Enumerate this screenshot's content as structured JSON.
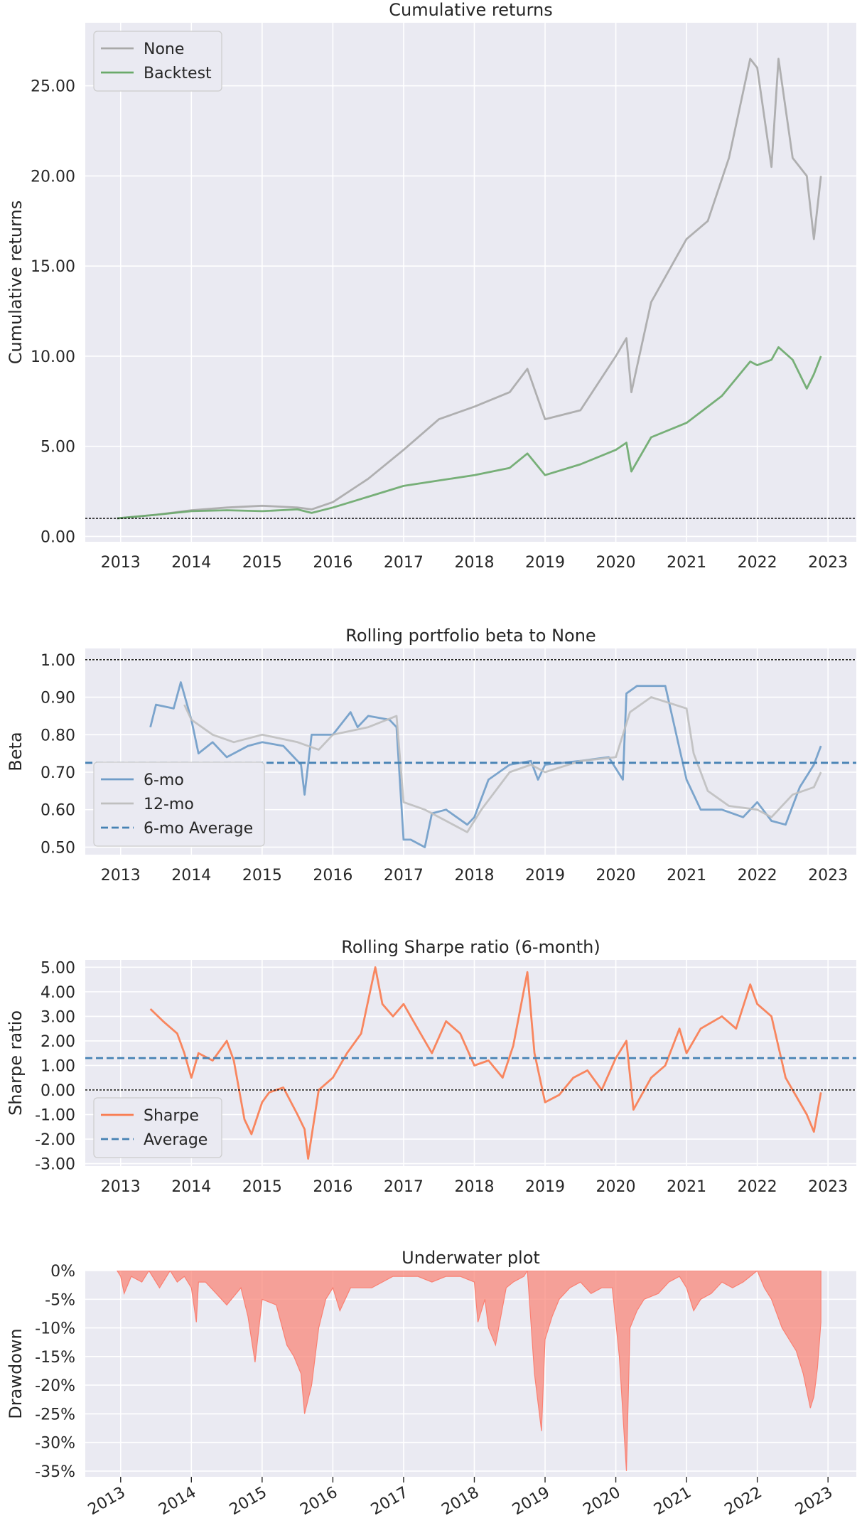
{
  "chart_data": [
    {
      "type": "line",
      "title": "Cumulative returns",
      "xlabel": "",
      "ylabel": "Cumulative returns",
      "xlim": [
        2012.5,
        2023.4
      ],
      "ylim": [
        -0.3,
        28.5
      ],
      "x_ticks": [
        2013,
        2014,
        2015,
        2016,
        2017,
        2018,
        2019,
        2020,
        2021,
        2022,
        2023
      ],
      "x_tick_labels": [
        "2013",
        "2014",
        "2015",
        "2016",
        "2017",
        "2018",
        "2019",
        "2020",
        "2021",
        "2022",
        "2023"
      ],
      "y_ticks": [
        0,
        5,
        10,
        15,
        20,
        25
      ],
      "y_tick_labels": [
        "0.00",
        "5.00",
        "10.00",
        "15.00",
        "20.00",
        "25.00"
      ],
      "hlines": [
        {
          "y": 1.0,
          "style": "dotted",
          "color": "#000000"
        }
      ],
      "legend": {
        "position": "top-left",
        "entries": [
          "None",
          "Backtest"
        ]
      },
      "grid": true,
      "series": [
        {
          "name": "None",
          "color": "#a9a9a9",
          "x": [
            2012.95,
            2013.5,
            2014.0,
            2014.5,
            2015.0,
            2015.5,
            2015.7,
            2016.0,
            2016.5,
            2017.0,
            2017.5,
            2018.0,
            2018.5,
            2018.75,
            2019.0,
            2019.5,
            2020.0,
            2020.15,
            2020.22,
            2020.5,
            2021.0,
            2021.3,
            2021.6,
            2021.9,
            2022.0,
            2022.2,
            2022.3,
            2022.5,
            2022.7,
            2022.8,
            2022.9
          ],
          "y": [
            1.0,
            1.2,
            1.45,
            1.6,
            1.7,
            1.6,
            1.5,
            1.9,
            3.2,
            4.8,
            6.5,
            7.2,
            8.0,
            9.3,
            6.5,
            7.0,
            10.0,
            11.0,
            8.0,
            13.0,
            16.5,
            17.5,
            21.0,
            26.5,
            26.0,
            20.5,
            26.5,
            21.0,
            20.0,
            16.5,
            20.0
          ]
        },
        {
          "name": "Backtest",
          "color": "#6aa96a",
          "x": [
            2012.95,
            2013.5,
            2014.0,
            2014.5,
            2015.0,
            2015.5,
            2015.7,
            2016.0,
            2016.5,
            2017.0,
            2017.5,
            2018.0,
            2018.5,
            2018.75,
            2019.0,
            2019.5,
            2020.0,
            2020.15,
            2020.22,
            2020.5,
            2021.0,
            2021.5,
            2021.9,
            2022.0,
            2022.2,
            2022.3,
            2022.5,
            2022.7,
            2022.8,
            2022.9
          ],
          "y": [
            1.0,
            1.2,
            1.4,
            1.45,
            1.4,
            1.5,
            1.3,
            1.6,
            2.2,
            2.8,
            3.1,
            3.4,
            3.8,
            4.6,
            3.4,
            4.0,
            4.8,
            5.2,
            3.6,
            5.5,
            6.3,
            7.8,
            9.7,
            9.5,
            9.8,
            10.5,
            9.8,
            8.2,
            9.0,
            10.0
          ]
        }
      ]
    },
    {
      "type": "line",
      "title": "Rolling portfolio beta to None",
      "xlabel": "",
      "ylabel": "Beta",
      "xlim": [
        2012.5,
        2023.4
      ],
      "ylim": [
        0.48,
        1.03
      ],
      "x_ticks": [
        2013,
        2014,
        2015,
        2016,
        2017,
        2018,
        2019,
        2020,
        2021,
        2022,
        2023
      ],
      "x_tick_labels": [
        "2013",
        "2014",
        "2015",
        "2016",
        "2017",
        "2018",
        "2019",
        "2020",
        "2021",
        "2022",
        "2023"
      ],
      "y_ticks": [
        0.5,
        0.6,
        0.7,
        0.8,
        0.9,
        1.0
      ],
      "y_tick_labels": [
        "0.50",
        "0.60",
        "0.70",
        "0.80",
        "0.90",
        "1.00"
      ],
      "hlines": [
        {
          "y": 1.0,
          "style": "dotted",
          "color": "#000000"
        },
        {
          "y": 0.725,
          "style": "dashed",
          "color": "#4682b4",
          "name": "6-mo Average"
        }
      ],
      "legend": {
        "position": "bottom-left",
        "entries": [
          "6-mo",
          "12-mo",
          "6-mo Average"
        ]
      },
      "grid": true,
      "series": [
        {
          "name": "6-mo",
          "color": "#6f9cc8",
          "x": [
            2013.42,
            2013.5,
            2013.75,
            2013.85,
            2014.0,
            2014.1,
            2014.3,
            2014.5,
            2014.8,
            2015.0,
            2015.3,
            2015.55,
            2015.6,
            2015.7,
            2016.0,
            2016.25,
            2016.35,
            2016.5,
            2016.8,
            2016.9,
            2017.0,
            2017.1,
            2017.3,
            2017.4,
            2017.6,
            2017.9,
            2018.0,
            2018.2,
            2018.5,
            2018.8,
            2018.9,
            2019.0,
            2019.5,
            2019.9,
            2020.1,
            2020.15,
            2020.3,
            2020.7,
            2021.0,
            2021.2,
            2021.5,
            2021.8,
            2022.0,
            2022.2,
            2022.4,
            2022.6,
            2022.8,
            2022.9
          ],
          "y": [
            0.82,
            0.88,
            0.87,
            0.94,
            0.84,
            0.75,
            0.78,
            0.74,
            0.77,
            0.78,
            0.77,
            0.72,
            0.64,
            0.8,
            0.8,
            0.86,
            0.82,
            0.85,
            0.84,
            0.82,
            0.52,
            0.52,
            0.5,
            0.59,
            0.6,
            0.56,
            0.58,
            0.68,
            0.72,
            0.73,
            0.68,
            0.72,
            0.73,
            0.74,
            0.68,
            0.91,
            0.93,
            0.93,
            0.68,
            0.6,
            0.6,
            0.58,
            0.62,
            0.57,
            0.56,
            0.66,
            0.72,
            0.77
          ]
        },
        {
          "name": "12-mo",
          "color": "#bfbfbf",
          "x": [
            2013.9,
            2014.0,
            2014.3,
            2014.6,
            2015.0,
            2015.5,
            2015.8,
            2016.0,
            2016.5,
            2016.9,
            2017.0,
            2017.3,
            2017.6,
            2017.9,
            2018.1,
            2018.5,
            2018.8,
            2019.0,
            2019.5,
            2020.0,
            2020.2,
            2020.5,
            2021.0,
            2021.1,
            2021.3,
            2021.6,
            2022.0,
            2022.2,
            2022.5,
            2022.8,
            2022.9
          ],
          "y": [
            0.88,
            0.84,
            0.8,
            0.78,
            0.8,
            0.78,
            0.76,
            0.8,
            0.82,
            0.85,
            0.62,
            0.6,
            0.57,
            0.54,
            0.6,
            0.7,
            0.72,
            0.7,
            0.73,
            0.74,
            0.86,
            0.9,
            0.87,
            0.75,
            0.65,
            0.61,
            0.6,
            0.58,
            0.64,
            0.66,
            0.7
          ]
        }
      ]
    },
    {
      "type": "line",
      "title": "Rolling Sharpe ratio (6-month)",
      "xlabel": "",
      "ylabel": "Sharpe ratio",
      "xlim": [
        2012.5,
        2023.4
      ],
      "ylim": [
        -3.1,
        5.3
      ],
      "x_ticks": [
        2013,
        2014,
        2015,
        2016,
        2017,
        2018,
        2019,
        2020,
        2021,
        2022,
        2023
      ],
      "x_tick_labels": [
        "2013",
        "2014",
        "2015",
        "2016",
        "2017",
        "2018",
        "2019",
        "2020",
        "2021",
        "2022",
        "2023"
      ],
      "y_ticks": [
        -3,
        -2,
        -1,
        0,
        1,
        2,
        3,
        4,
        5
      ],
      "y_tick_labels": [
        "-3.00",
        "-2.00",
        "-1.00",
        "0.00",
        "1.00",
        "2.00",
        "3.00",
        "4.00",
        "5.00"
      ],
      "hlines": [
        {
          "y": 0,
          "style": "dotted",
          "color": "#000000"
        },
        {
          "y": 1.3,
          "style": "dashed",
          "color": "#4682b4",
          "name": "Average"
        }
      ],
      "legend": {
        "position": "bottom-left",
        "entries": [
          "Sharpe",
          "Average"
        ]
      },
      "grid": true,
      "series": [
        {
          "name": "Sharpe",
          "color": "#f97b4f",
          "x": [
            2013.42,
            2013.6,
            2013.8,
            2013.9,
            2014.0,
            2014.1,
            2014.3,
            2014.5,
            2014.6,
            2014.75,
            2014.85,
            2015.0,
            2015.1,
            2015.3,
            2015.5,
            2015.6,
            2015.65,
            2015.8,
            2016.0,
            2016.2,
            2016.4,
            2016.6,
            2016.7,
            2016.85,
            2017.0,
            2017.2,
            2017.4,
            2017.6,
            2017.8,
            2018.0,
            2018.2,
            2018.4,
            2018.55,
            2018.75,
            2018.85,
            2019.0,
            2019.2,
            2019.4,
            2019.6,
            2019.8,
            2020.0,
            2020.15,
            2020.25,
            2020.5,
            2020.7,
            2020.9,
            2021.0,
            2021.2,
            2021.5,
            2021.7,
            2021.9,
            2022.0,
            2022.2,
            2022.4,
            2022.5,
            2022.7,
            2022.8,
            2022.9
          ],
          "y": [
            3.3,
            2.8,
            2.3,
            1.5,
            0.5,
            1.5,
            1.2,
            2.0,
            1.2,
            -1.2,
            -1.8,
            -0.5,
            -0.1,
            0.1,
            -1.0,
            -1.6,
            -2.8,
            0.0,
            0.5,
            1.5,
            2.3,
            5.0,
            3.5,
            3.0,
            3.5,
            2.5,
            1.5,
            2.8,
            2.3,
            1.0,
            1.2,
            0.5,
            1.8,
            4.8,
            1.5,
            -0.5,
            -0.2,
            0.5,
            0.8,
            0.0,
            1.3,
            2.0,
            -0.8,
            0.5,
            1.0,
            2.5,
            1.5,
            2.5,
            3.0,
            2.5,
            4.3,
            3.5,
            3.0,
            0.5,
            0.0,
            -1.0,
            -1.7,
            -0.1
          ]
        }
      ]
    },
    {
      "type": "area",
      "title": "Underwater plot",
      "xlabel": "",
      "ylabel": "Drawdown",
      "xlim": [
        2012.5,
        2023.4
      ],
      "ylim": [
        -36,
        0
      ],
      "x_ticks": [
        2013,
        2014,
        2015,
        2016,
        2017,
        2018,
        2019,
        2020,
        2021,
        2022,
        2023
      ],
      "x_tick_labels": [
        "2013",
        "2014",
        "2015",
        "2016",
        "2017",
        "2018",
        "2019",
        "2020",
        "2021",
        "2022",
        "2023"
      ],
      "x_tick_rotation": 30,
      "y_ticks": [
        0,
        -5,
        -10,
        -15,
        -20,
        -25,
        -30,
        -35
      ],
      "y_tick_labels": [
        "0%",
        "-5%",
        "-10%",
        "-15%",
        "-20%",
        "-25%",
        "-30%",
        "-35%"
      ],
      "grid": true,
      "series": [
        {
          "name": "",
          "color": "#fa8072",
          "x": [
            2012.95,
            2013.0,
            2013.05,
            2013.15,
            2013.3,
            2013.4,
            2013.55,
            2013.7,
            2013.8,
            2013.9,
            2014.0,
            2014.07,
            2014.1,
            2014.2,
            2014.35,
            2014.5,
            2014.7,
            2014.8,
            2014.9,
            2015.0,
            2015.2,
            2015.35,
            2015.45,
            2015.55,
            2015.6,
            2015.7,
            2015.8,
            2015.9,
            2016.0,
            2016.1,
            2016.25,
            2016.4,
            2016.55,
            2016.7,
            2016.85,
            2017.0,
            2017.2,
            2017.4,
            2017.6,
            2017.8,
            2018.0,
            2018.05,
            2018.15,
            2018.2,
            2018.3,
            2018.45,
            2018.55,
            2018.7,
            2018.75,
            2018.85,
            2018.95,
            2019.0,
            2019.1,
            2019.2,
            2019.35,
            2019.5,
            2019.65,
            2019.8,
            2019.95,
            2020.05,
            2020.15,
            2020.2,
            2020.3,
            2020.4,
            2020.6,
            2020.75,
            2020.9,
            2021.0,
            2021.1,
            2021.2,
            2021.35,
            2021.5,
            2021.65,
            2021.8,
            2021.9,
            2022.0,
            2022.1,
            2022.2,
            2022.35,
            2022.45,
            2022.55,
            2022.65,
            2022.75,
            2022.8,
            2022.85,
            2022.9
          ],
          "y": [
            0,
            -1,
            -4,
            -1,
            -2,
            0,
            -3,
            0,
            -2,
            -1,
            -3,
            -9,
            -2,
            -2,
            -4,
            -6,
            -3,
            -8,
            -16,
            -5,
            -6,
            -13,
            -15,
            -18,
            -25,
            -20,
            -10,
            -5,
            -3,
            -7,
            -3,
            -3,
            -3,
            -2,
            -1,
            -1,
            -1,
            -2,
            -1,
            -1,
            -2,
            -9,
            -5,
            -10,
            -13,
            -3,
            -2,
            -1,
            0,
            -18,
            -28,
            -12,
            -8,
            -5,
            -3,
            -2,
            -4,
            -3,
            -3,
            -15,
            -35,
            -10,
            -7,
            -5,
            -4,
            -2,
            -1,
            -3,
            -7,
            -5,
            -4,
            -2,
            -3,
            -2,
            -1,
            0,
            -3,
            -5,
            -10,
            -12,
            -14,
            -18,
            -24,
            -22,
            -17,
            -9
          ]
        }
      ]
    }
  ]
}
